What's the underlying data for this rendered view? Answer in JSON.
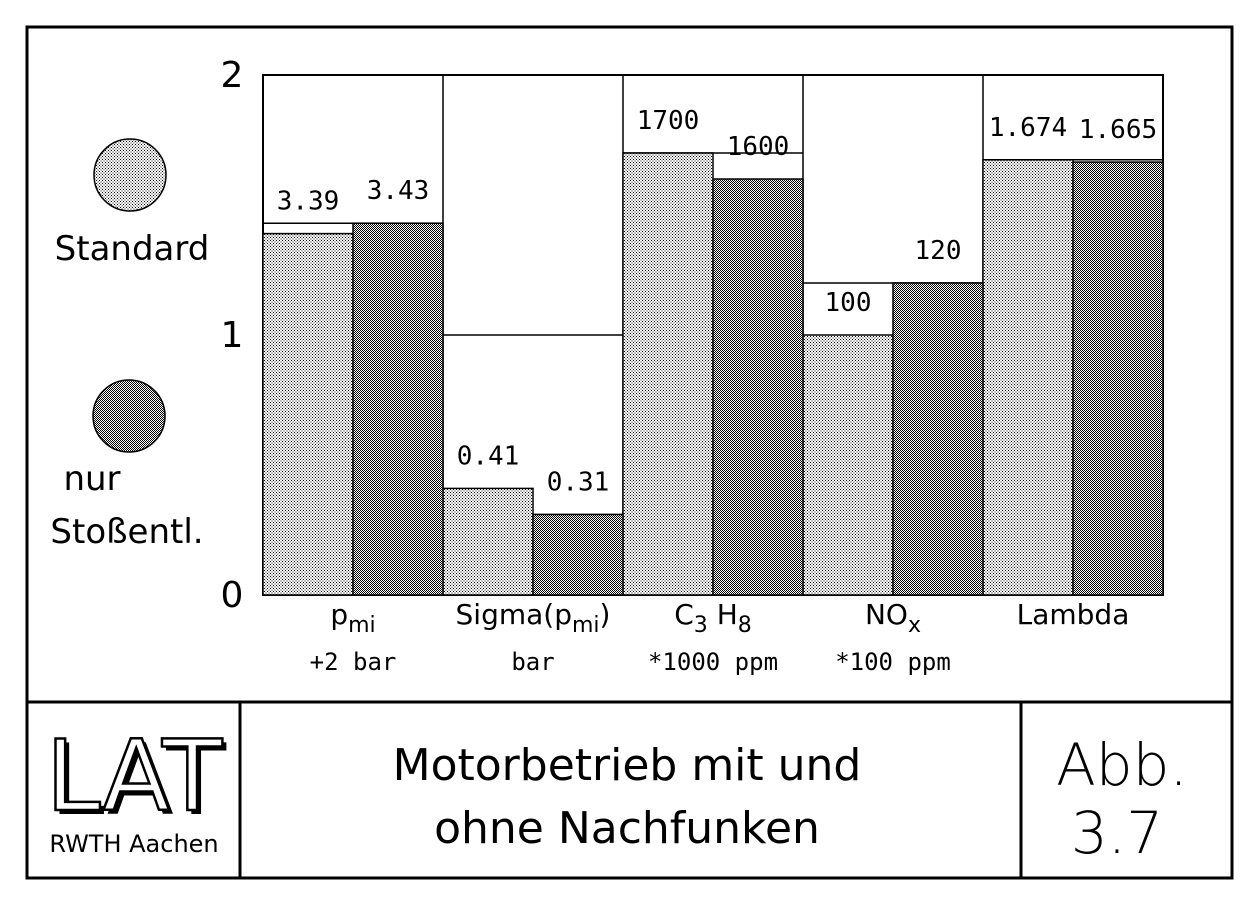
{
  "chart_data": {
    "type": "bar",
    "ylim": [
      0,
      2
    ],
    "yticks": [
      "0",
      "1",
      "2"
    ],
    "categories": [
      {
        "label": "p",
        "sub": "mi",
        "unit": "+2 bar"
      },
      {
        "label": "Sigma(p",
        "sub": "mi",
        "suffix": ")",
        "unit": "bar"
      },
      {
        "label": "C3 H8",
        "unit": "*1000 ppm"
      },
      {
        "label": "NO",
        "sub": "x",
        "unit": "*100 ppm"
      },
      {
        "label": "Lambda",
        "unit": ""
      }
    ],
    "series": [
      {
        "name": "Standard",
        "fill": "light",
        "values": [
          1.39,
          0.41,
          1.7,
          1.0,
          1.674
        ],
        "labels": [
          "3.39",
          "0.41",
          "1700",
          "100",
          "1.674"
        ]
      },
      {
        "name": "nur Stoßentl.",
        "fill": "dark",
        "values": [
          1.43,
          0.31,
          1.6,
          1.2,
          1.665
        ],
        "labels": [
          "3.43",
          "0.31",
          "1600",
          "120",
          "1.665"
        ]
      }
    ],
    "legend": {
      "position": "left",
      "items": [
        {
          "lines": [
            "Standard"
          ]
        },
        {
          "lines": [
            "nur",
            "Stoßentl."
          ]
        }
      ]
    }
  },
  "footer": {
    "logo": {
      "text": "LAT",
      "sub": "RWTH Aachen"
    },
    "title_lines": [
      "Motorbetrieb mit und",
      "ohne Nachfunken"
    ],
    "fig_lines": [
      "Abb.",
      "3.7"
    ]
  },
  "colors": {
    "ink": "#000000",
    "paper": "#ffffff"
  }
}
